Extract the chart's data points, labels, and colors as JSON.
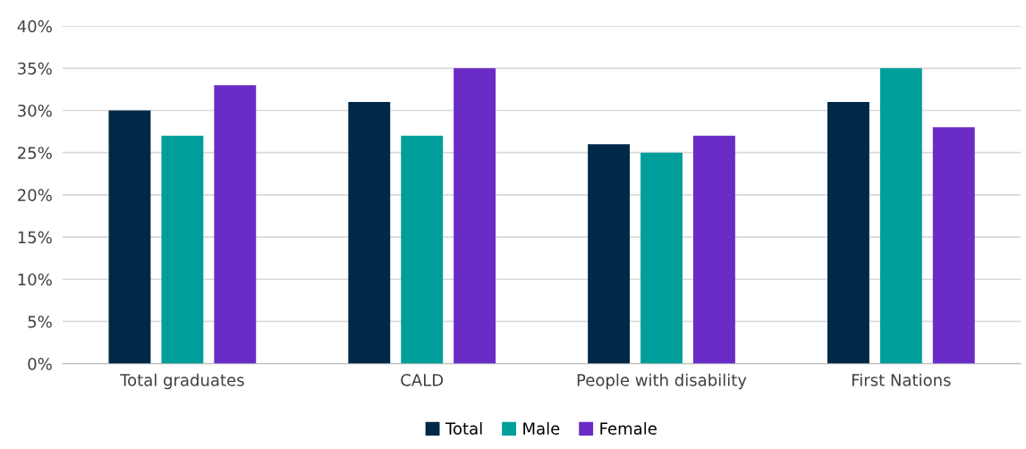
{
  "chart_data": {
    "type": "bar",
    "categories": [
      "Total graduates",
      "CALD",
      "People with disability",
      "First Nations"
    ],
    "series": [
      {
        "name": "Total",
        "color": "#002847",
        "values": [
          30,
          31,
          26,
          31
        ]
      },
      {
        "name": "Male",
        "color": "#009e9a",
        "values": [
          27,
          27,
          25,
          35
        ]
      },
      {
        "name": "Female",
        "color": "#6a2bc6",
        "values": [
          33,
          35,
          27,
          28
        ]
      }
    ],
    "ylim": [
      0,
      40
    ],
    "yticks": [
      {
        "value": 0,
        "label": "0%"
      },
      {
        "value": 5,
        "label": "5%"
      },
      {
        "value": 10,
        "label": "10%"
      },
      {
        "value": 15,
        "label": "15%"
      },
      {
        "value": 20,
        "label": "20%"
      },
      {
        "value": 25,
        "label": "25%"
      },
      {
        "value": 30,
        "label": "30%"
      },
      {
        "value": 35,
        "label": "35%"
      },
      {
        "value": 40,
        "label": "40%"
      }
    ],
    "grid": "y",
    "legend": "bottom"
  }
}
